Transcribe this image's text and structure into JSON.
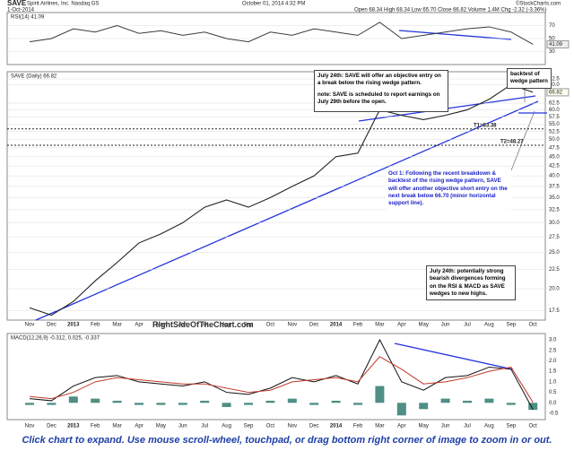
{
  "chart_data": {
    "type": "stock-panels",
    "header": {
      "symbol": "SAVE",
      "company": "Spirit Airlines, Inc.  Nasdaq GS",
      "date": "1-Oct-2014",
      "timestamp": "October 01, 2014 4:32 PM",
      "source": "©StockCharts.com",
      "quote": "Open 68.34  High 68.34  Low 65.70  Close 66.82  Volume 1.4M  Chg -2.32 (-3.36%)"
    },
    "categories": [
      "Nov",
      "Dec",
      "2013",
      "Feb",
      "Mar",
      "Apr",
      "May",
      "Jun",
      "Jul",
      "Aug",
      "Sep",
      "Oct",
      "Nov",
      "Dec",
      "2014",
      "Feb",
      "Mar",
      "Apr",
      "May",
      "Jun",
      "Jul",
      "Aug",
      "Sep",
      "Oct"
    ],
    "rsi": {
      "title": "RSI(14) 41.09",
      "color": "#3a3a3a",
      "fill": "#8fb7c9",
      "values": [
        45,
        50,
        65,
        60,
        70,
        58,
        62,
        55,
        60,
        50,
        45,
        60,
        55,
        65,
        60,
        55,
        75,
        50,
        55,
        60,
        65,
        68,
        60,
        41.09
      ],
      "ylim": [
        10,
        90
      ],
      "yticks": [
        30,
        50,
        70
      ]
    },
    "price": {
      "title": "SAVE (Daily) 66.82",
      "color": "#222",
      "log_scale": true,
      "values": [
        17.8,
        17,
        18.5,
        21,
        23.5,
        26.5,
        28,
        30,
        33,
        34.5,
        33,
        35,
        37.5,
        40,
        45,
        46,
        60,
        58,
        56.5,
        58,
        60,
        64,
        70,
        66.82
      ],
      "ylim": [
        16.5,
        75.8
      ],
      "yticks": [
        {
          "value": 72.5,
          "label": "72.5"
        },
        {
          "value": 70,
          "label": "70.0"
        },
        {
          "value": 62.5,
          "label": "62.5"
        },
        {
          "value": 60,
          "label": "60.0"
        },
        {
          "value": 57.5,
          "label": "57.5"
        },
        {
          "value": 55,
          "label": "55.0"
        },
        {
          "value": 52.5,
          "label": "52.5"
        },
        {
          "value": 50,
          "label": "50.0"
        },
        {
          "value": 47.5,
          "label": "47.5"
        },
        {
          "value": 45,
          "label": "45.0"
        },
        {
          "value": 42.5,
          "label": "42.5"
        },
        {
          "value": 40,
          "label": "40.0"
        },
        {
          "value": 37.5,
          "label": "37.5"
        },
        {
          "value": 35,
          "label": "35.0"
        },
        {
          "value": 32.5,
          "label": "32.5"
        },
        {
          "value": 30,
          "label": "30.0"
        },
        {
          "value": 27.5,
          "label": "27.5"
        },
        {
          "value": 25,
          "label": "25.0"
        },
        {
          "value": 22.5,
          "label": "22.5"
        },
        {
          "value": 20,
          "label": "20.0"
        },
        {
          "value": 17.5,
          "label": "17.5"
        }
      ],
      "targets": [
        {
          "label": "T1=53.38",
          "value": 53.38
        },
        {
          "label": "T2=48.27",
          "value": 48.27
        }
      ]
    },
    "macd": {
      "title": "MACD(12,26,9) -0.312, 0.025, -0.337",
      "ylim": [
        -0.8,
        3.3
      ],
      "yticks": [
        {
          "value": 3,
          "label": "3.0"
        },
        {
          "value": 2.5,
          "label": "2.5"
        },
        {
          "value": 2,
          "label": "2.0"
        },
        {
          "value": 1.5,
          "label": "1.5"
        },
        {
          "value": 1,
          "label": "1.0"
        },
        {
          "value": 0.5,
          "label": "0.5"
        },
        {
          "value": 0,
          "label": "0.0"
        },
        {
          "value": -0.5,
          "label": "-0.5"
        }
      ],
      "series": [
        {
          "name": "MACD",
          "color": "#111",
          "values": [
            0.2,
            0.1,
            0.8,
            1.2,
            1.3,
            1,
            0.9,
            0.8,
            1,
            0.5,
            0.4,
            0.7,
            1.2,
            1,
            1.3,
            0.9,
            3,
            1,
            0.6,
            1.2,
            1.3,
            1.7,
            1.6,
            -0.312
          ]
        },
        {
          "name": "Signal",
          "color": "#c0392b",
          "values": [
            0.3,
            0.2,
            0.5,
            1,
            1.2,
            1.1,
            1,
            0.9,
            0.9,
            0.7,
            0.5,
            0.6,
            1,
            1.1,
            1.2,
            1,
            2.2,
            1.6,
            0.9,
            1,
            1.2,
            1.5,
            1.7,
            0.025
          ]
        },
        {
          "name": "Histogram",
          "color": "#4f8f86",
          "values": [
            -0.1,
            -0.1,
            0.3,
            0.2,
            0.1,
            -0.1,
            -0.1,
            -0.1,
            0.1,
            -0.2,
            -0.1,
            0.1,
            0.2,
            -0.1,
            0.1,
            -0.1,
            0.8,
            -0.6,
            -0.3,
            0.2,
            0.1,
            0.2,
            -0.1,
            -0.337
          ]
        }
      ]
    },
    "annotations": {
      "entry_note": "July 24th: SAVE will offer an objective entry on a break below the rising wedge pattern.",
      "earnings_note": "note: SAVE is scheduled to report earnings on July 29th before the open.",
      "backtest": "backtest of wedge pattern",
      "oct_note": "Oct 1: Following the recent breakdown & backtest of the rising wedge pattern, SAVE will offer another objective short entry on the next break below 66.70 (minor horizontal support line).",
      "divergence_note": "July 24th: potentially strong bearish divergences forming on the RSI & MACD as SAVE wedges to new highs.",
      "watermark": "RightSideOfTheChart.com"
    },
    "footer": "Click chart to expand. Use mouse scroll-wheel, touchpad, or drag bottom right corner of image to zoom in or out."
  }
}
